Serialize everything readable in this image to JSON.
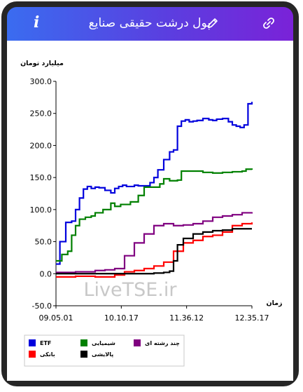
{
  "header": {
    "title": "پول درشت حقیقی صنایع",
    "info_icon": "i",
    "edit_icon": "pencil-icon",
    "link_icon": "link-icon"
  },
  "watermark": "LiveTSE.ir",
  "colors": {
    "header_start": "#3a6cf0",
    "header_end": "#7a22d8",
    "frame": "#262626"
  },
  "chart_data": {
    "type": "line",
    "ylabel": "میلیارد تومان",
    "xlabel": "زمان",
    "ylim": [
      -50,
      300
    ],
    "yticks": [
      "300.0",
      "250.0",
      "200.0",
      "150.0",
      "100.0",
      "50.0",
      "0.0",
      "-50.0"
    ],
    "xticks": [
      "09.05.01",
      "10.10.17",
      "11.36.12",
      "12.35.17"
    ],
    "grid": false,
    "legend_position": "bottom",
    "series": [
      {
        "name": "ETF",
        "color": "#0000dd",
        "x": [
          0,
          0.02,
          0.05,
          0.08,
          0.1,
          0.12,
          0.14,
          0.16,
          0.18,
          0.2,
          0.22,
          0.25,
          0.28,
          0.3,
          0.32,
          0.34,
          0.36,
          0.38,
          0.4,
          0.42,
          0.45,
          0.48,
          0.5,
          0.52,
          0.55,
          0.58,
          0.6,
          0.62,
          0.64,
          0.66,
          0.68,
          0.7,
          0.72,
          0.75,
          0.78,
          0.8,
          0.82,
          0.85,
          0.88,
          0.9,
          0.92,
          0.94,
          0.96,
          0.98,
          1
        ],
        "values": [
          15,
          50,
          80,
          82,
          100,
          118,
          132,
          136,
          133,
          135,
          134,
          130,
          126,
          133,
          136,
          138,
          136,
          136,
          138,
          137,
          137,
          142,
          150,
          162,
          178,
          190,
          193,
          230,
          238,
          240,
          237,
          238,
          239,
          242,
          240,
          239,
          241,
          242,
          237,
          232,
          230,
          228,
          232,
          265,
          268
        ]
      },
      {
        "name": "شیمیایی",
        "color": "#008000",
        "x": [
          0,
          0.03,
          0.06,
          0.08,
          0.1,
          0.12,
          0.15,
          0.18,
          0.2,
          0.24,
          0.28,
          0.3,
          0.33,
          0.38,
          0.42,
          0.45,
          0.5,
          0.53,
          0.55,
          0.58,
          0.62,
          0.64,
          0.7,
          0.75,
          0.8,
          0.85,
          0.9,
          0.95,
          0.97,
          1
        ],
        "values": [
          20,
          30,
          35,
          60,
          75,
          85,
          88,
          90,
          95,
          100,
          110,
          105,
          108,
          112,
          122,
          135,
          135,
          140,
          148,
          145,
          146,
          160,
          160,
          158,
          157,
          158,
          159,
          160,
          163,
          162
        ]
      },
      {
        "name": "چند رشته ای",
        "color": "#800080",
        "x": [
          0,
          0.1,
          0.2,
          0.25,
          0.3,
          0.35,
          0.4,
          0.45,
          0.5,
          0.55,
          0.6,
          0.65,
          0.7,
          0.75,
          0.8,
          0.85,
          0.9,
          0.95,
          1
        ],
        "values": [
          2,
          3,
          5,
          6,
          8,
          28,
          48,
          62,
          75,
          78,
          75,
          76,
          78,
          82,
          88,
          90,
          92,
          95,
          96
        ]
      },
      {
        "name": "بانکی",
        "color": "#ff0000",
        "x": [
          0,
          0.1,
          0.2,
          0.3,
          0.35,
          0.4,
          0.45,
          0.5,
          0.55,
          0.6,
          0.65,
          0.7,
          0.75,
          0.8,
          0.85,
          0.9,
          0.95,
          1
        ],
        "values": [
          -5,
          -4,
          -5,
          -2,
          3,
          5,
          8,
          12,
          18,
          35,
          48,
          52,
          58,
          60,
          65,
          75,
          78,
          80
        ]
      },
      {
        "name": "پالایشی",
        "color": "#000000",
        "x": [
          0,
          0.1,
          0.2,
          0.3,
          0.4,
          0.5,
          0.55,
          0.58,
          0.6,
          0.62,
          0.65,
          0.7,
          0.75,
          0.8,
          0.85,
          0.9,
          0.95,
          1
        ],
        "values": [
          0,
          0,
          0,
          0,
          0,
          1,
          2,
          4,
          20,
          45,
          55,
          62,
          65,
          67,
          68,
          70,
          70,
          70
        ]
      }
    ]
  }
}
